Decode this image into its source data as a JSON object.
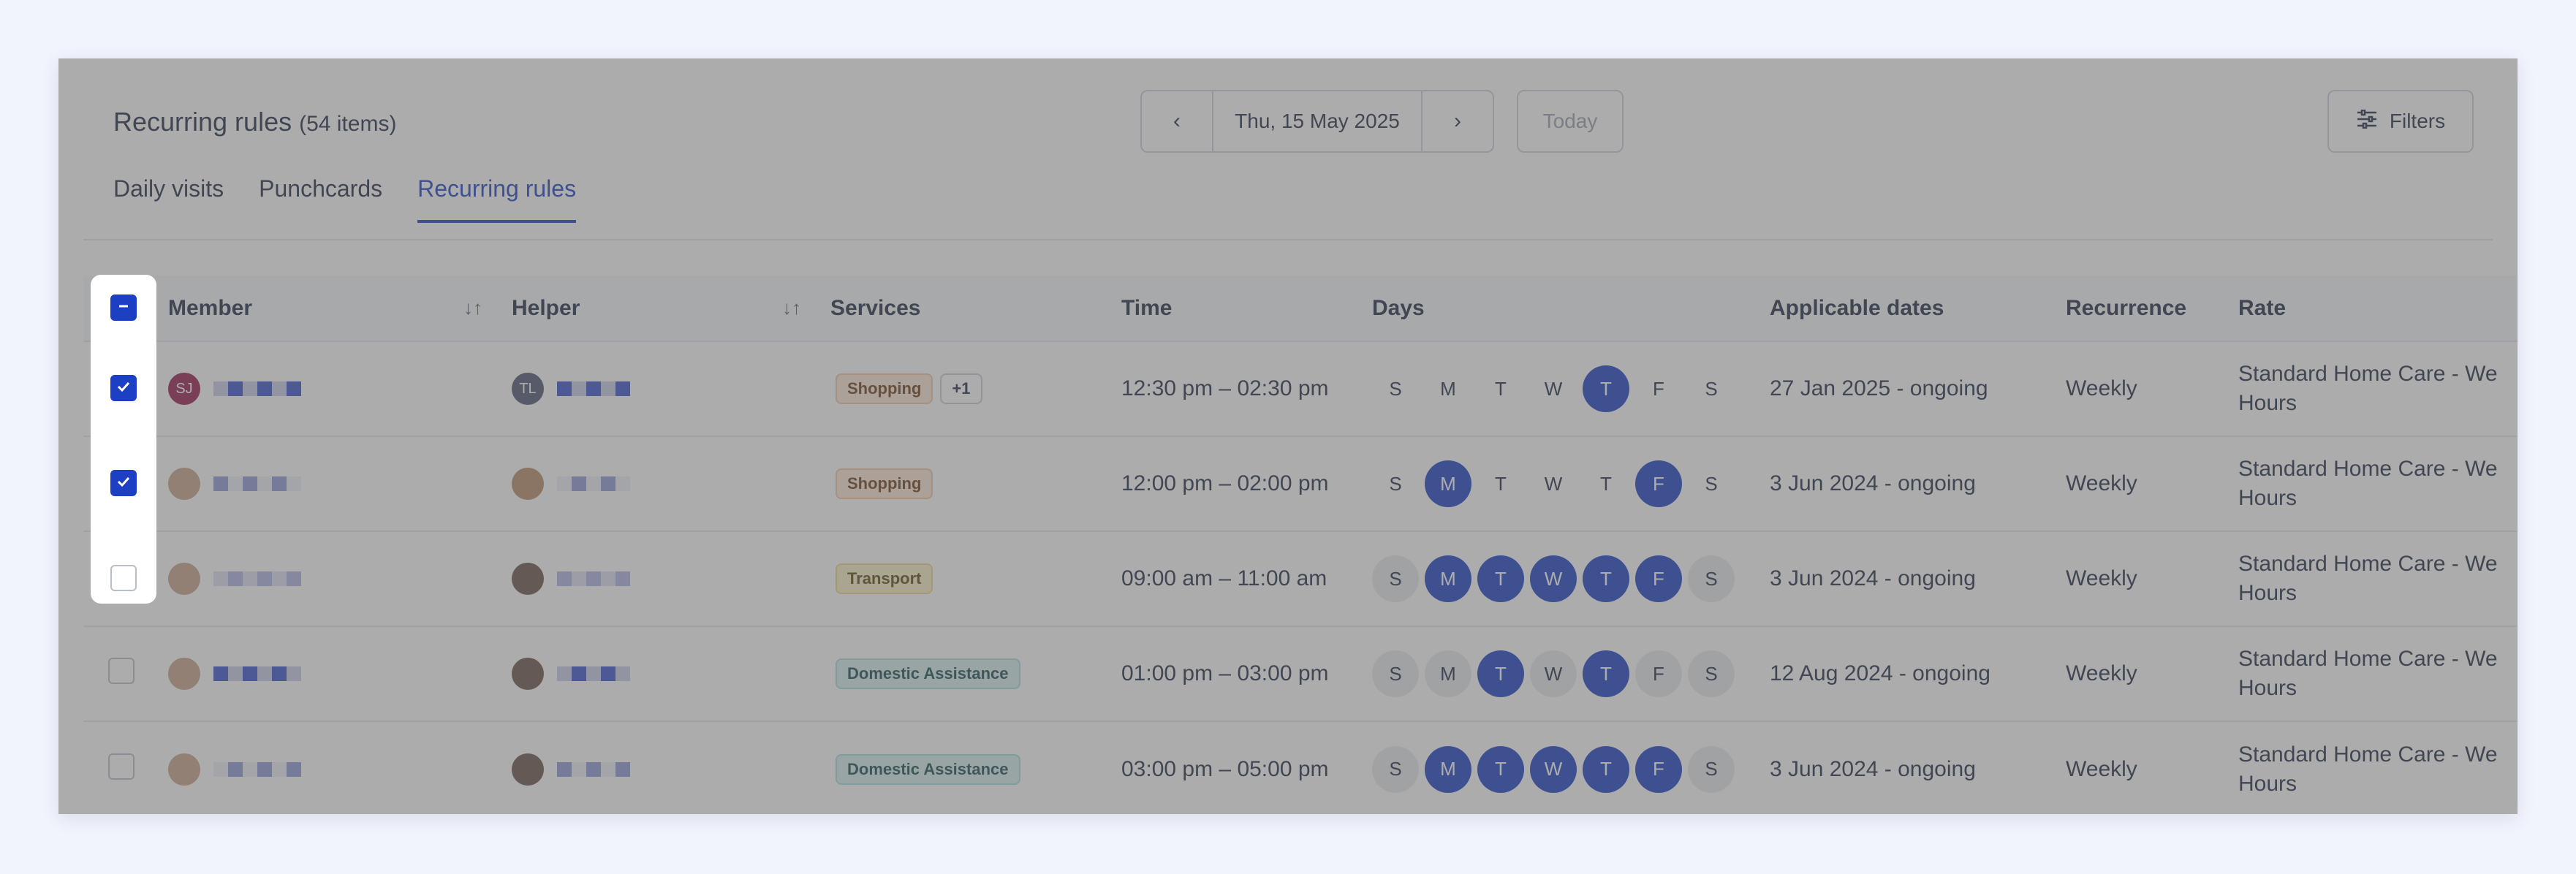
{
  "header": {
    "title": "Recurring rules",
    "count": "(54 items)",
    "date": "Thu, 15 May 2025",
    "today_label": "Today",
    "filters_label": "Filters"
  },
  "tabs": [
    {
      "label": "Daily visits",
      "active": false
    },
    {
      "label": "Punchcards",
      "active": false
    },
    {
      "label": "Recurring rules",
      "active": true
    }
  ],
  "table": {
    "columns": [
      "Member",
      "Helper",
      "Services",
      "Time",
      "Days",
      "Applicable dates",
      "Recurrence",
      "Rate"
    ],
    "day_letters": [
      "S",
      "M",
      "T",
      "W",
      "T",
      "F",
      "S"
    ],
    "rows": [
      {
        "checked": true,
        "member_initials": "SJ",
        "helper_initials": "TL",
        "services": [
          {
            "label": "Shopping",
            "kind": "shopping"
          },
          {
            "label": "+1",
            "kind": "more"
          }
        ],
        "time": "12:30 pm – 02:30 pm",
        "days": [
          false,
          false,
          false,
          false,
          true,
          false,
          false
        ],
        "style": "plain",
        "dates": "27 Jan 2025 - ongoing",
        "recurrence": "Weekly",
        "rate": "Standard Home Care - We Hours"
      },
      {
        "checked": true,
        "member_initials": "",
        "helper_initials": "",
        "services": [
          {
            "label": "Shopping",
            "kind": "shopping"
          }
        ],
        "time": "12:00 pm – 02:00 pm",
        "days": [
          false,
          true,
          false,
          false,
          false,
          true,
          false
        ],
        "style": "plain",
        "dates": "3 Jun 2024 - ongoing",
        "recurrence": "Weekly",
        "rate": "Standard Home Care - We Hours"
      },
      {
        "checked": false,
        "member_initials": "",
        "helper_initials": "",
        "services": [
          {
            "label": "Transport",
            "kind": "transport"
          }
        ],
        "time": "09:00 am – 11:00 am",
        "days": [
          false,
          true,
          true,
          true,
          true,
          true,
          false
        ],
        "style": "muted",
        "dates": "3 Jun 2024 - ongoing",
        "recurrence": "Weekly",
        "rate": "Standard Home Care - We Hours"
      },
      {
        "checked": false,
        "member_initials": "",
        "helper_initials": "",
        "services": [
          {
            "label": "Domestic Assistance",
            "kind": "domestic"
          }
        ],
        "time": "01:00 pm – 03:00 pm",
        "days": [
          false,
          false,
          true,
          false,
          true,
          false,
          false
        ],
        "style": "muted",
        "dates": "12 Aug 2024 - ongoing",
        "recurrence": "Weekly",
        "rate": "Standard Home Care - We Hours"
      },
      {
        "checked": false,
        "member_initials": "",
        "helper_initials": "",
        "services": [
          {
            "label": "Domestic Assistance",
            "kind": "domestic"
          }
        ],
        "time": "03:00 pm – 05:00 pm",
        "days": [
          false,
          true,
          true,
          true,
          true,
          true,
          false
        ],
        "style": "muted",
        "dates": "3 Jun 2024 - ongoing",
        "recurrence": "Weekly",
        "rate": "Standard Home Care - We Hours"
      }
    ]
  },
  "colors": {
    "accent": "#1d3fc4",
    "background": "#f1f4fd",
    "member_avatar": "#9a1b4f",
    "helper_avatar": "#4b5574"
  },
  "icons": [
    "chevron-left-icon",
    "chevron-right-icon",
    "filters-icon",
    "sort-icon",
    "checkmark-icon",
    "minus-icon"
  ]
}
